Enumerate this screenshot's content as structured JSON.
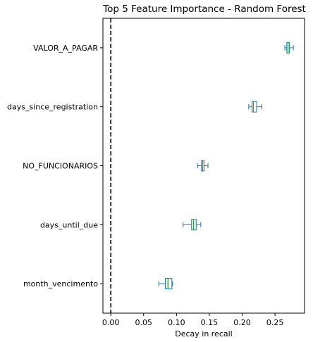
{
  "chart_data": {
    "type": "boxplot",
    "orientation": "horizontal",
    "title": "Top 5 Feature Importance - Random Forest",
    "xlabel": "Decay in recall",
    "ylabel": "",
    "xlim": [
      -0.012,
      0.295
    ],
    "xticks": [
      0.0,
      0.05,
      0.1,
      0.15,
      0.2,
      0.25
    ],
    "xtick_labels": [
      "0.00",
      "0.05",
      "0.10",
      "0.15",
      "0.20",
      "0.25"
    ],
    "grid": false,
    "reference_line": {
      "x": 0.0,
      "style": "dashed",
      "color": "#000000"
    },
    "box_color": "#1f77b4",
    "median_color": "#2ca02c",
    "categories": [
      "VALOR_A_PAGAR",
      "days_since_registration",
      "NO_FUNCIONARIOS",
      "days_until_due",
      "month_vencimento"
    ],
    "boxes": [
      {
        "label": "VALOR_A_PAGAR",
        "whislo": 0.265,
        "q1": 0.268,
        "med": 0.27,
        "q3": 0.272,
        "whishi": 0.278
      },
      {
        "label": "days_since_registration",
        "whislo": 0.21,
        "q1": 0.215,
        "med": 0.217,
        "q3": 0.222,
        "whishi": 0.23
      },
      {
        "label": "NO_FUNCIONARIOS",
        "whislo": 0.132,
        "q1": 0.138,
        "med": 0.14,
        "q3": 0.142,
        "whishi": 0.148
      },
      {
        "label": "days_until_due",
        "whislo": 0.11,
        "q1": 0.123,
        "med": 0.126,
        "q3": 0.13,
        "whishi": 0.137
      },
      {
        "label": "month_vencimento",
        "whislo": 0.073,
        "q1": 0.083,
        "med": 0.087,
        "q3": 0.093,
        "whishi": 0.094
      }
    ]
  }
}
